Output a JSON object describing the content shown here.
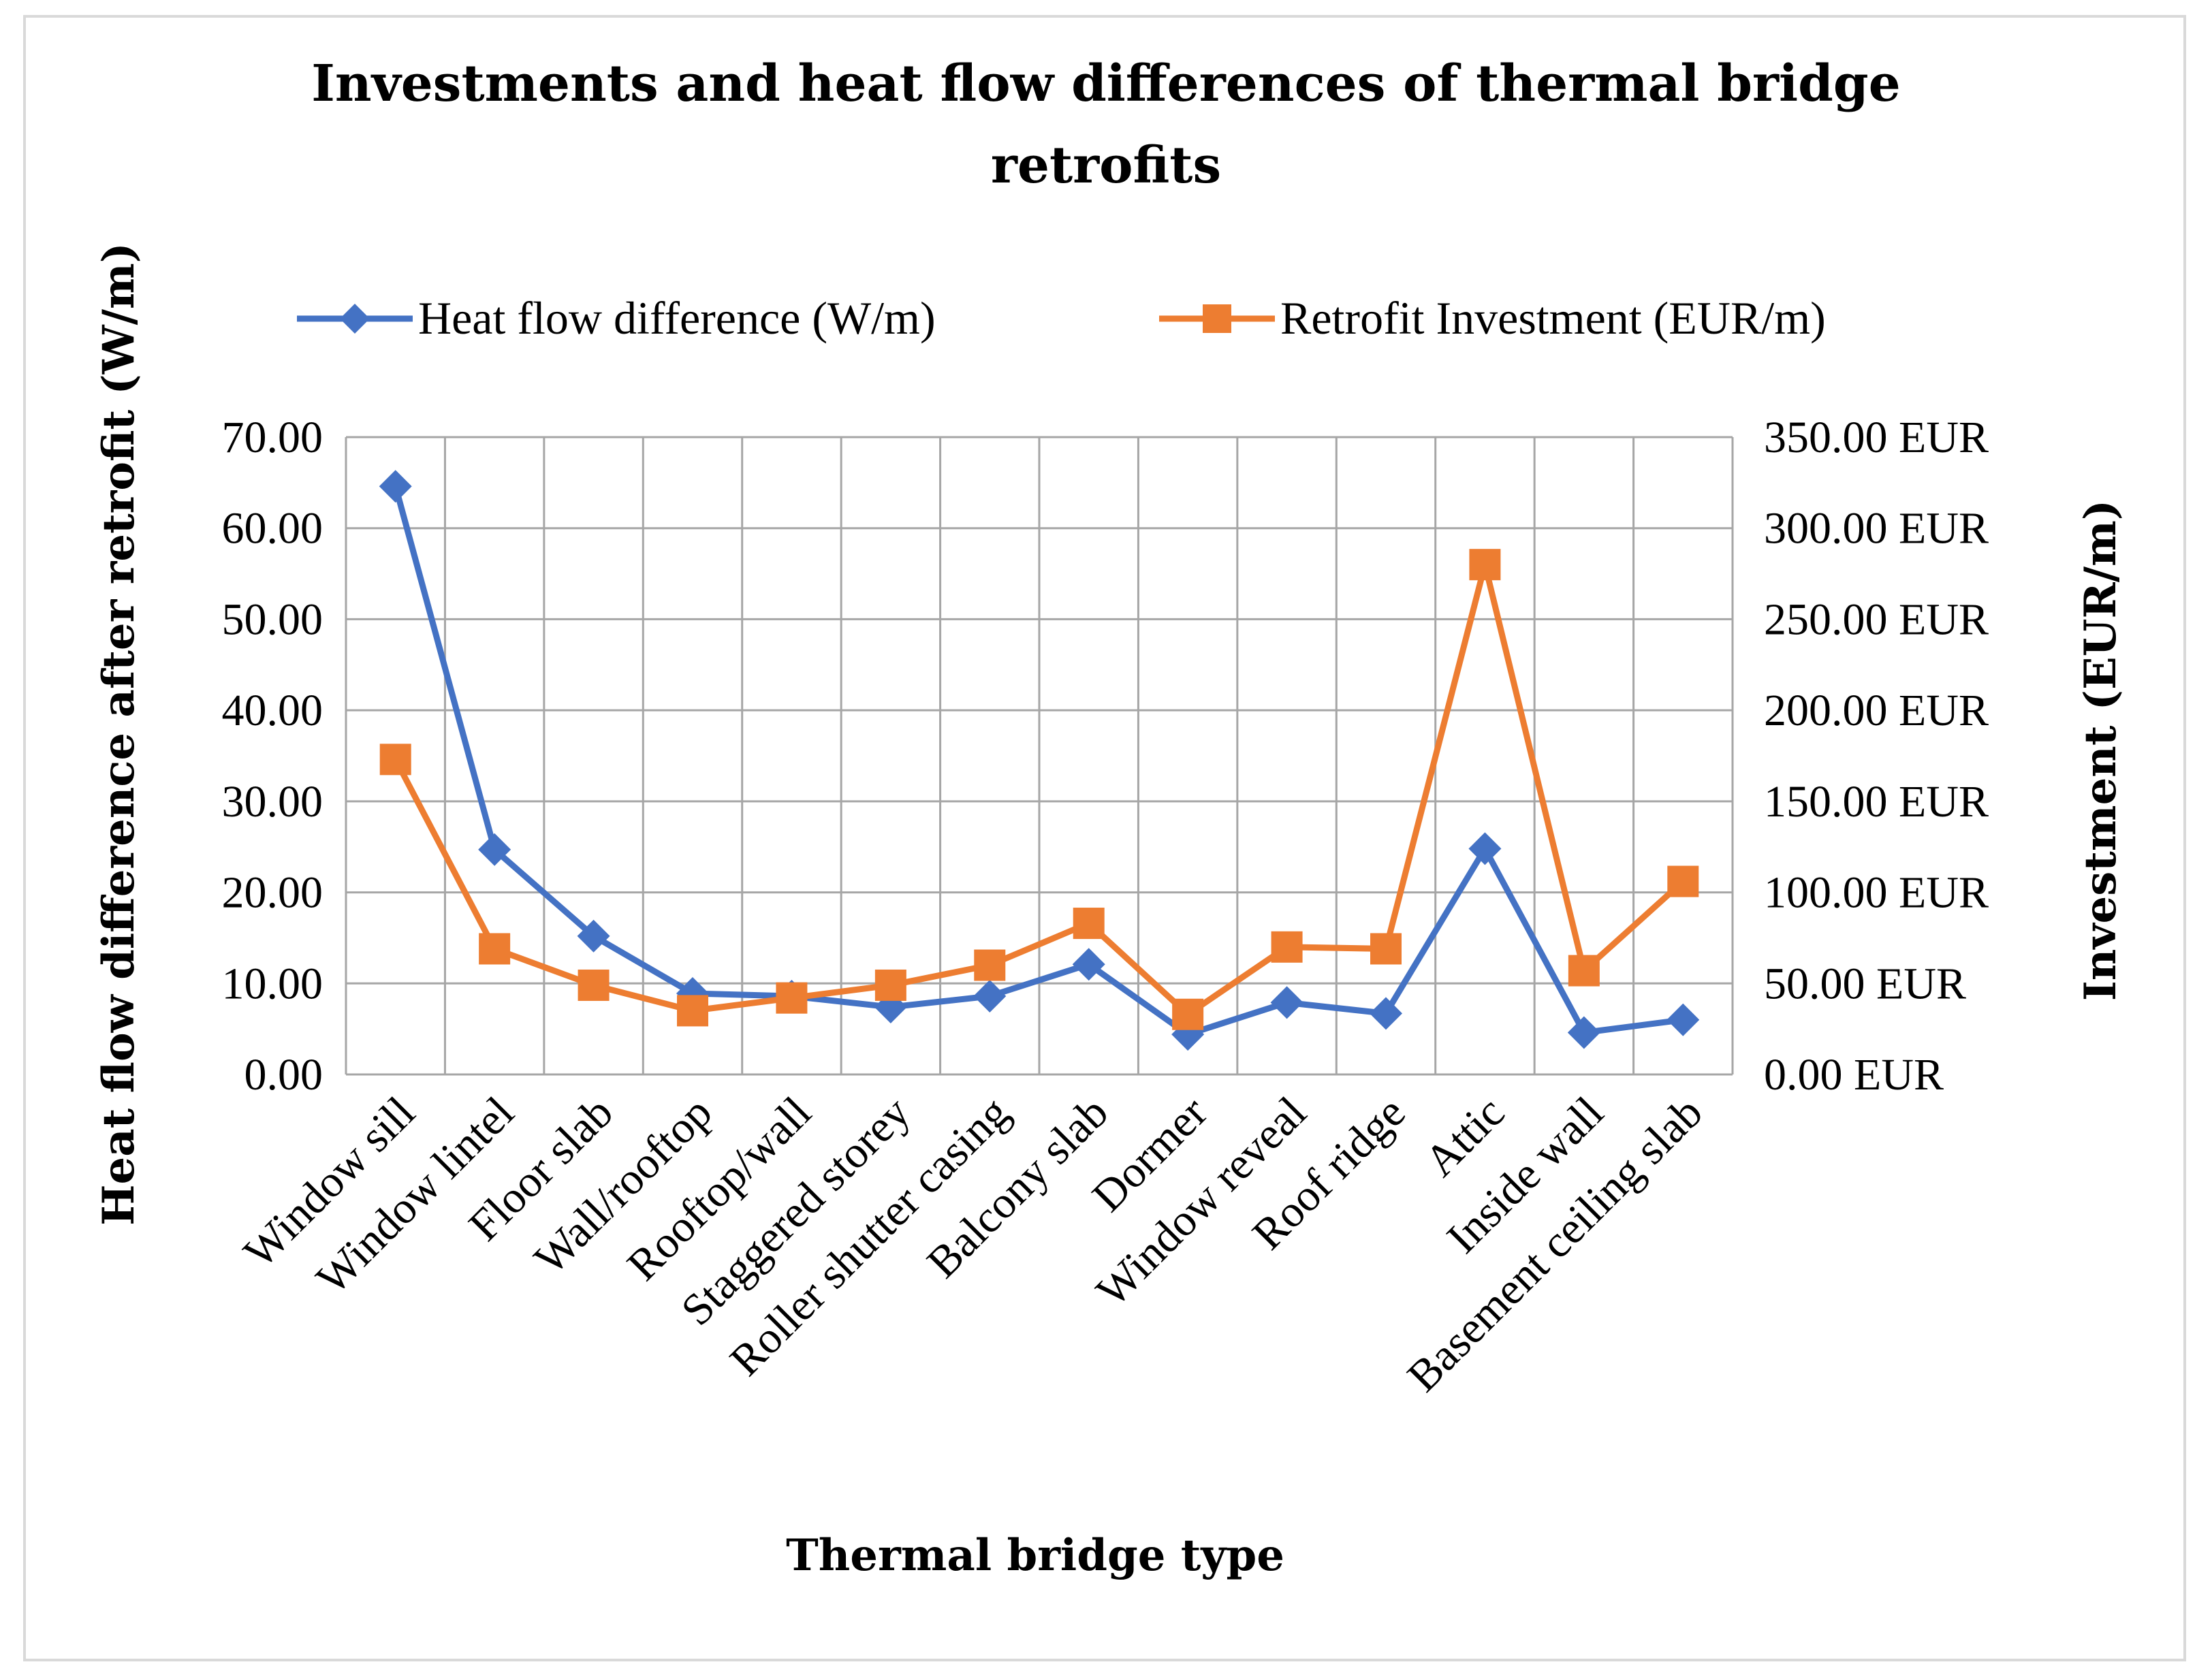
{
  "chart_data": {
    "type": "line",
    "title_lines": [
      "Investments and heat flow differences of thermal bridge",
      "retrofits"
    ],
    "xlabel": "Thermal bridge type",
    "ylabel": "Heat flow difference after retrofit (W/m)",
    "y2label": "Investment (EUR/m)",
    "categories": [
      "Window sill",
      "Window lintel",
      "Floor slab",
      "Wall/rooftop",
      "Rooftop/wall",
      "Staggered storey",
      "Roller shutter casing",
      "Balcony slab",
      "Dormer",
      "Window reveal",
      "Roof ridge",
      "Attic",
      "Inside wall",
      "Basement ceiling slab"
    ],
    "ylim": [
      0,
      70
    ],
    "y2lim": [
      0,
      350
    ],
    "yticks": [
      "0.00",
      "10.00",
      "20.00",
      "30.00",
      "40.00",
      "50.00",
      "60.00",
      "70.00"
    ],
    "y2ticks": [
      "0.00 EUR",
      "50.00 EUR",
      "100.00 EUR",
      "150.00 EUR",
      "200.00 EUR",
      "250.00 EUR",
      "300.00 EUR",
      "350.00 EUR"
    ],
    "grid": true,
    "legend_position": "top",
    "series": [
      {
        "name": "Heat flow difference (W/m)",
        "axis": "left",
        "color": "#4472c4",
        "marker": "diamond",
        "values": [
          64.6,
          24.7,
          15.2,
          8.9,
          8.6,
          7.4,
          8.6,
          12.1,
          4.4,
          7.9,
          6.7,
          24.8,
          4.6,
          6.0
        ]
      },
      {
        "name": "Retrofit Investment (EUR/m)",
        "axis": "right",
        "color": "#ed7d31",
        "marker": "square",
        "values": [
          173,
          69,
          49,
          35,
          42,
          49,
          60,
          83,
          33,
          70,
          69,
          280,
          57,
          106
        ]
      }
    ]
  }
}
